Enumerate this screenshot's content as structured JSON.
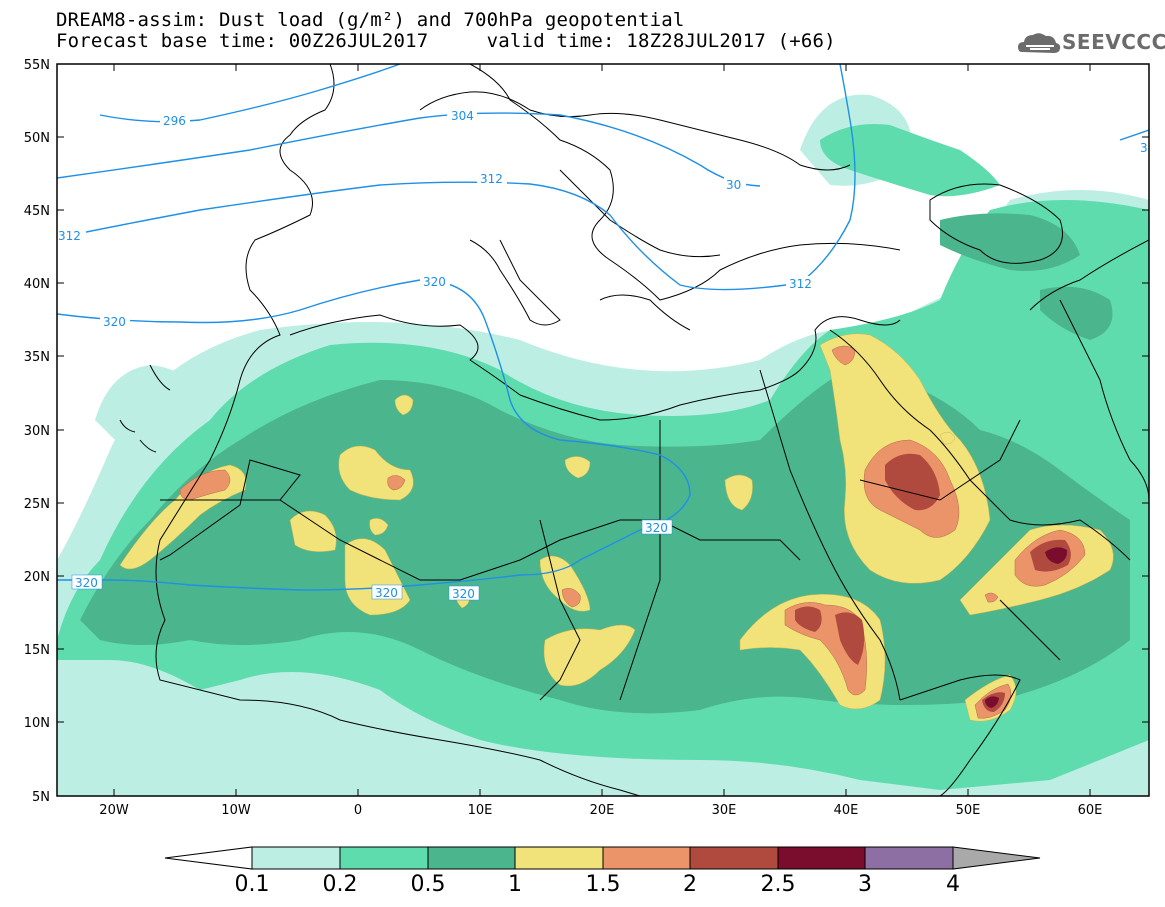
{
  "header": {
    "title_line1": "DREAM8-assim: Dust load (g/m²) and 700hPa geopotential",
    "title_line2": "Forecast base time: 00Z26JUL2017     valid time: 18Z28JUL2017 (+66)",
    "logo_text": "SEEVCCC"
  },
  "axes": {
    "lat_labels": [
      "55N",
      "50N",
      "45N",
      "40N",
      "35N",
      "30N",
      "25N",
      "20N",
      "15N",
      "10N",
      "5N"
    ],
    "lon_labels": [
      "20W",
      "10W",
      "0",
      "10E",
      "20E",
      "30E",
      "40E",
      "50E",
      "60E"
    ]
  },
  "contour_labels": {
    "c296": "296",
    "c304": "304",
    "c312_west": "312",
    "c312_central": "312",
    "c312_east": "312",
    "c304_east": "30",
    "c320_north": "320",
    "c320_west": "320",
    "c320_africa_a": "320",
    "c320_africa_b": "320",
    "c320_africa_c": "320",
    "c320_left": "320",
    "c3_edge": "3"
  },
  "colorbar": {
    "labels": [
      "0.1",
      "0.2",
      "0.5",
      "1",
      "1.5",
      "2",
      "2.5",
      "3",
      "4"
    ],
    "colors": [
      "#bdeee4",
      "#5fdcae",
      "#4bb58e",
      "#f2e27a",
      "#eb946a",
      "#b04a3e",
      "#7a0d2e",
      "#8e6fa3",
      "#a9a9a9"
    ]
  },
  "map_colors": {
    "ocean_land": "#ffffff",
    "coast": "#000000",
    "contour": "#1e90e6"
  }
}
